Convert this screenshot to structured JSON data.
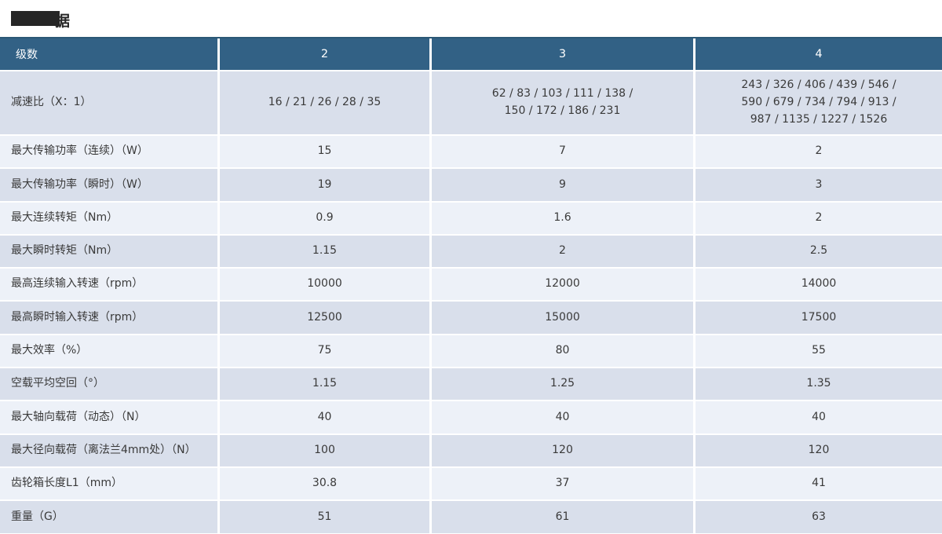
{
  "title": {
    "redacted": true,
    "visible_fragment": "据"
  },
  "colors": {
    "header_bg": "#326185",
    "row_dark": "#d9dfeb",
    "row_light": "#edf1f8",
    "header_text": "#ffffff",
    "cell_text": "#3a3a3a",
    "redaction": "#262626"
  },
  "table": {
    "headers": [
      "级数",
      "2",
      "3",
      "4"
    ],
    "rows": [
      {
        "label": "减速比（X：1）",
        "values": [
          "16 / 21 / 26 / 28 / 35",
          "62 / 83 / 103 / 111 / 138 /\n150 / 172 / 186 / 231",
          "243 / 326 / 406 / 439 / 546 /\n590 / 679 / 734 / 794 / 913 /\n987 / 1135 / 1227 / 1526"
        ],
        "tall": true
      },
      {
        "label": "最大传输功率（连续）（W）",
        "values": [
          "15",
          "7",
          "2"
        ]
      },
      {
        "label": "最大传输功率（瞬时）（W）",
        "values": [
          "19",
          "9",
          "3"
        ]
      },
      {
        "label": "最大连续转矩（Nm）",
        "values": [
          "0.9",
          "1.6",
          "2"
        ]
      },
      {
        "label": "最大瞬时转矩（Nm）",
        "values": [
          "1.15",
          "2",
          "2.5"
        ]
      },
      {
        "label": "最高连续输入转速（rpm）",
        "values": [
          "10000",
          "12000",
          "14000"
        ]
      },
      {
        "label": "最高瞬时输入转速（rpm）",
        "values": [
          "12500",
          "15000",
          "17500"
        ]
      },
      {
        "label": "最大效率（%）",
        "values": [
          "75",
          "80",
          "55"
        ]
      },
      {
        "label": "空载平均空回（°）",
        "values": [
          "1.15",
          "1.25",
          "1.35"
        ]
      },
      {
        "label": "最大轴向载荷（动态）（N）",
        "values": [
          "40",
          "40",
          "40"
        ]
      },
      {
        "label": "最大径向载荷（离法兰4mm处）（N）",
        "values": [
          "100",
          "120",
          "120"
        ]
      },
      {
        "label": "齿轮箱长度L1（mm）",
        "values": [
          "30.8",
          "37",
          "41"
        ]
      },
      {
        "label": "重量（G）",
        "values": [
          "51",
          "61",
          "63"
        ]
      }
    ]
  }
}
